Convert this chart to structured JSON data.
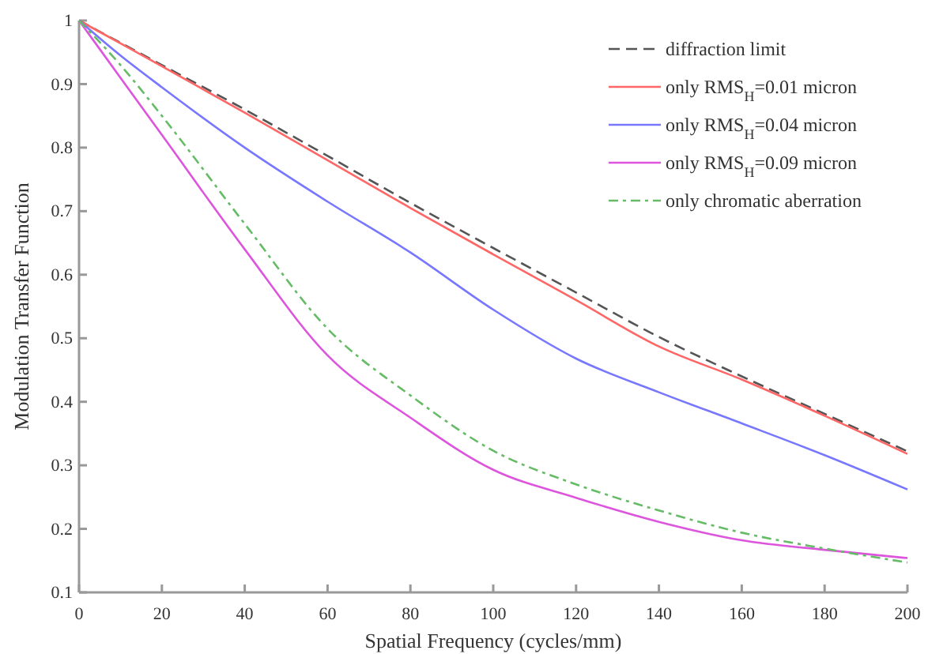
{
  "chart_data": {
    "type": "line",
    "xlabel": "Spatial Frequency (cycles/mm)",
    "ylabel": "Modulation Transfer Function",
    "xlim": [
      0,
      200
    ],
    "ylim": [
      0.1,
      1
    ],
    "xticks": [
      0,
      20,
      40,
      60,
      80,
      100,
      120,
      140,
      160,
      180,
      200
    ],
    "yticks": [
      0.1,
      0.2,
      0.3,
      0.4,
      0.5,
      0.6,
      0.7,
      0.8,
      0.9,
      1
    ],
    "legend": "top right",
    "grid": false,
    "x": [
      0,
      10,
      20,
      40,
      60,
      80,
      100,
      120,
      140,
      160,
      180,
      200
    ],
    "series": [
      {
        "name": "diffraction limit",
        "color": "#555555",
        "line_style": "dashed",
        "values": [
          1,
          0.965,
          0.93,
          0.86,
          0.787,
          0.713,
          0.642,
          0.572,
          0.502,
          0.44,
          0.381,
          0.322
        ]
      },
      {
        "name": "only RMS$_{H}$=0.01 micron",
        "color": "#ff6666",
        "line_style": "solid",
        "values": [
          1,
          0.964,
          0.928,
          0.855,
          0.78,
          0.705,
          0.632,
          0.56,
          0.487,
          0.435,
          0.378,
          0.318
        ]
      },
      {
        "name": "only RMS$_{H}$=0.04 micron",
        "color": "#7777ff",
        "line_style": "solid",
        "values": [
          1,
          0.945,
          0.895,
          0.8,
          0.715,
          0.635,
          0.545,
          0.468,
          0.415,
          0.366,
          0.316,
          0.262
        ]
      },
      {
        "name": "only RMS$_{H}$=0.09 micron",
        "color": "#dd55dd",
        "line_style": "solid",
        "values": [
          1,
          0.91,
          0.82,
          0.64,
          0.473,
          0.375,
          0.293,
          0.249,
          0.211,
          0.182,
          0.167,
          0.154
        ]
      },
      {
        "name": "only chromatic aberration",
        "color": "#66bb66",
        "line_style": "dashdot",
        "values": [
          1,
          0.93,
          0.85,
          0.68,
          0.515,
          0.41,
          0.323,
          0.27,
          0.229,
          0.194,
          0.169,
          0.147
        ]
      }
    ]
  }
}
